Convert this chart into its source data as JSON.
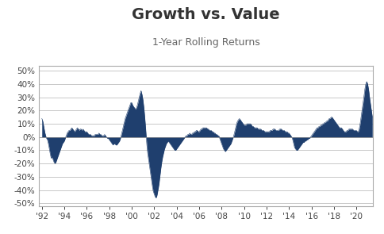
{
  "title": "Growth vs. Value",
  "subtitle": "1-Year Rolling Returns",
  "title_fontsize": 14,
  "subtitle_fontsize": 9,
  "fill_color": "#1F3F6E",
  "line_color": "#1F3F6E",
  "background_color": "#FFFFFF",
  "grid_color": "#C8C8C8",
  "ylim": [
    -0.52,
    0.54
  ],
  "yticks": [
    -0.5,
    -0.4,
    -0.3,
    -0.2,
    -0.1,
    0.0,
    0.1,
    0.2,
    0.3,
    0.4,
    0.5
  ],
  "xtick_labels": [
    "'92",
    "'94",
    "'96",
    "'98",
    "'00",
    "'02",
    "'04",
    "'06",
    "'08",
    "'10",
    "'12",
    "'14",
    "'16",
    "'18",
    "'20"
  ],
  "figsize": [
    4.85,
    2.95
  ],
  "dpi": 100,
  "xlim_left": 1991.7,
  "xlim_right": 2021.5
}
